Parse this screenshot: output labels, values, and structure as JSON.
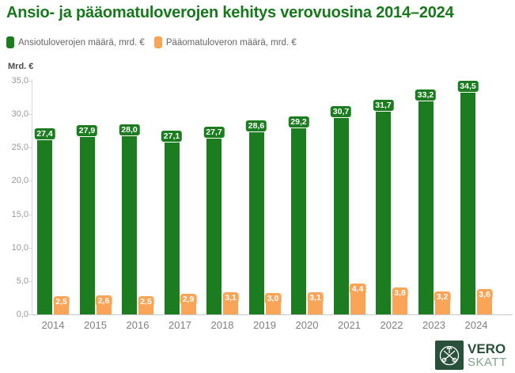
{
  "title": "Ansio- ja pääomatuloverojen kehitys verovuosina 2014–2024",
  "y_axis_unit_label": "Mrd. €",
  "legend": [
    {
      "label": "Ansiotuloverojen määrä, mrd. €",
      "color": "#1b7d1f"
    },
    {
      "label": "Pääomatuloveron määrä, mrd. €",
      "color": "#f9a456"
    }
  ],
  "chart_data": {
    "type": "bar",
    "title": "Ansio- ja pääomatuloverojen kehitys verovuosina 2014–2024",
    "categories": [
      "2014",
      "2015",
      "2016",
      "2017",
      "2018",
      "2019",
      "2020",
      "2021",
      "2022",
      "2023",
      "2024"
    ],
    "series": [
      {
        "name": "Ansiotuloverojen määrä, mrd. €",
        "color": "#1b7d1f",
        "values": [
          27.4,
          27.9,
          28.0,
          27.1,
          27.7,
          28.6,
          29.2,
          30.7,
          31.7,
          33.2,
          34.5
        ]
      },
      {
        "name": "Pääomatuloveron määrä, mrd. €",
        "color": "#f9a456",
        "values": [
          2.5,
          2.6,
          2.5,
          2.9,
          3.1,
          3.0,
          3.1,
          4.4,
          3.8,
          3.2,
          3.6
        ]
      }
    ],
    "xlabel": "",
    "ylabel": "Mrd. €",
    "ylim": [
      0,
      35
    ],
    "ytick_step": 5,
    "decimal_separator": ",",
    "grid": false,
    "legend_position": "top-left",
    "value_labels": "shown"
  },
  "logo": {
    "line1": "VERO",
    "line2": "SKATT"
  },
  "colors": {
    "title_green": "#17781c",
    "bar_green": "#1b7d1f",
    "bar_orange": "#f9a456",
    "logo_green": "#28503a",
    "axis_gray": "#d9d9d9",
    "tick_text_gray": "#999999",
    "year_text_gray": "#808080",
    "legend_text_gray": "#666666"
  }
}
